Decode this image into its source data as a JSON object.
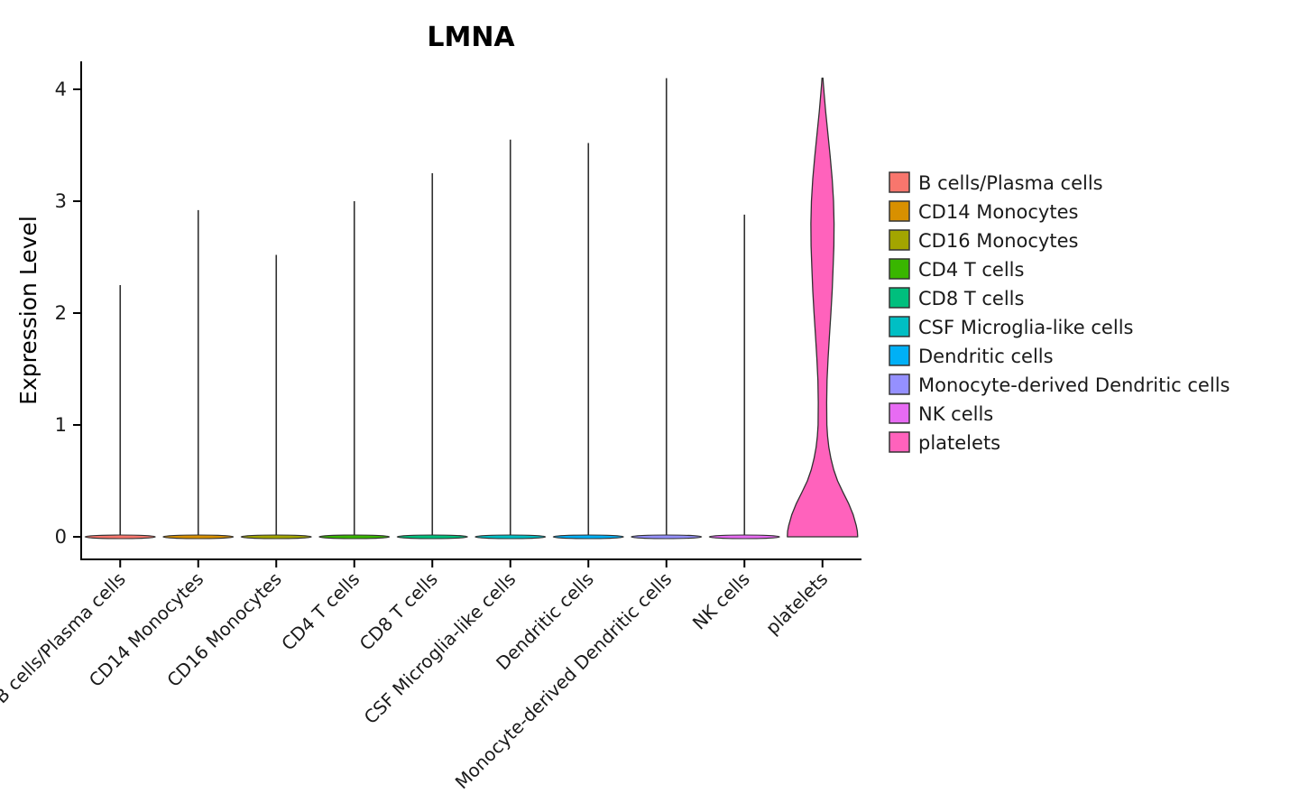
{
  "chart_data": {
    "type": "violin",
    "title": "LMNA",
    "xlabel": "",
    "ylabel": "Expression Level",
    "ylim": [
      0,
      4.3
    ],
    "yticks": [
      0,
      1,
      2,
      3,
      4
    ],
    "grid": false,
    "legend_position": "right",
    "categories": [
      "B cells/Plasma cells",
      "CD14 Monocytes",
      "CD16 Monocytes",
      "CD4 T cells",
      "CD8 T cells",
      "CSF Microglia-like cells",
      "Dendritic cells",
      "Monocyte-derived Dendritic cells",
      "NK cells",
      "platelets"
    ],
    "series": [
      {
        "name": "B cells/Plasma cells",
        "color": "#F8766D",
        "max_expression": 2.25,
        "body": "flat-base-spike"
      },
      {
        "name": "CD14 Monocytes",
        "color": "#D89000",
        "max_expression": 2.92,
        "body": "flat-base-spike"
      },
      {
        "name": "CD16 Monocytes",
        "color": "#A3A500",
        "max_expression": 2.52,
        "body": "flat-base-spike"
      },
      {
        "name": "CD4 T cells",
        "color": "#39B600",
        "max_expression": 3.0,
        "body": "flat-base-spike"
      },
      {
        "name": "CD8 T cells",
        "color": "#00BF7D",
        "max_expression": 3.25,
        "body": "flat-base-spike"
      },
      {
        "name": "CSF Microglia-like cells",
        "color": "#00BFC4",
        "max_expression": 3.55,
        "body": "flat-base-spike"
      },
      {
        "name": "Dendritic cells",
        "color": "#00B0F6",
        "max_expression": 3.52,
        "body": "flat-base-spike"
      },
      {
        "name": "Monocyte-derived Dendritic cells",
        "color": "#9590FF",
        "max_expression": 4.1,
        "body": "flat-base-spike"
      },
      {
        "name": "NK cells",
        "color": "#E76BF3",
        "max_expression": 2.88,
        "body": "flat-base-spike"
      },
      {
        "name": "platelets",
        "color": "#FF62BC",
        "max_expression": 4.1,
        "body": "violin",
        "profile": [
          [
            0.0,
            1.0
          ],
          [
            0.05,
            0.99
          ],
          [
            0.1,
            0.96
          ],
          [
            0.2,
            0.87
          ],
          [
            0.3,
            0.74
          ],
          [
            0.4,
            0.58
          ],
          [
            0.5,
            0.43
          ],
          [
            0.6,
            0.32
          ],
          [
            0.7,
            0.24
          ],
          [
            0.8,
            0.18
          ],
          [
            0.9,
            0.145
          ],
          [
            1.0,
            0.125
          ],
          [
            1.2,
            0.118
          ],
          [
            1.4,
            0.13
          ],
          [
            1.6,
            0.16
          ],
          [
            1.8,
            0.2
          ],
          [
            2.0,
            0.24
          ],
          [
            2.2,
            0.275
          ],
          [
            2.4,
            0.3
          ],
          [
            2.6,
            0.325
          ],
          [
            2.8,
            0.33
          ],
          [
            3.0,
            0.315
          ],
          [
            3.2,
            0.275
          ],
          [
            3.4,
            0.22
          ],
          [
            3.6,
            0.155
          ],
          [
            3.8,
            0.09
          ],
          [
            3.95,
            0.05
          ],
          [
            4.05,
            0.025
          ],
          [
            4.1,
            0.015
          ]
        ]
      }
    ]
  }
}
